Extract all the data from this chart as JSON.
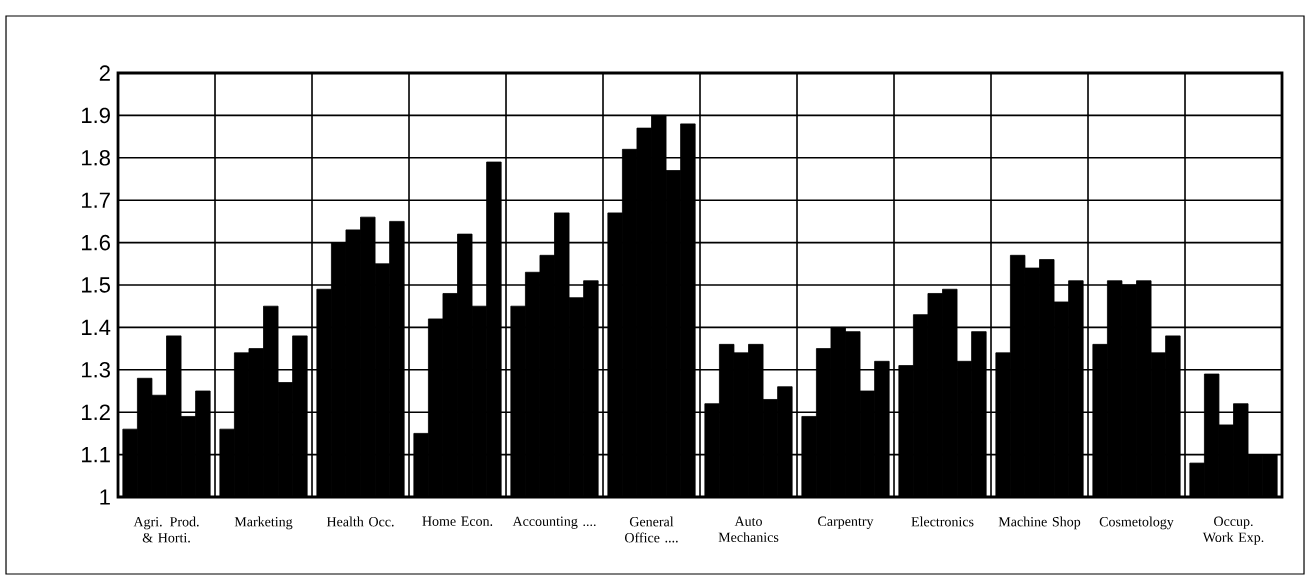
{
  "chart_data": {
    "type": "bar",
    "categories": [
      "Agri. Prod. & Horti.",
      "Marketing",
      "Health Occ.",
      "Home Econ.",
      "Accounting ....",
      "General Office ....",
      "Auto Mechanics",
      "Carpentry",
      "Electronics",
      "Machine Shop",
      "Cosmetology",
      "Occup. Work Exp."
    ],
    "series": [
      {
        "color": "#000000",
        "values": [
          1.16,
          1.16,
          1.49,
          1.15,
          1.45,
          1.67,
          1.22,
          1.19,
          1.31,
          1.34,
          1.36,
          1.08
        ]
      },
      {
        "color": "#000000",
        "values": [
          1.28,
          1.34,
          1.6,
          1.42,
          1.53,
          1.82,
          1.36,
          1.35,
          1.43,
          1.57,
          1.51,
          1.29
        ]
      },
      {
        "color": "#000000",
        "values": [
          1.24,
          1.35,
          1.63,
          1.48,
          1.57,
          1.87,
          1.34,
          1.4,
          1.48,
          1.54,
          1.5,
          1.17
        ]
      },
      {
        "color": "#000000",
        "values": [
          1.38,
          1.45,
          1.66,
          1.62,
          1.67,
          1.9,
          1.36,
          1.39,
          1.49,
          1.56,
          1.51,
          1.22
        ]
      },
      {
        "color": "#000000",
        "values": [
          1.19,
          1.27,
          1.55,
          1.45,
          1.47,
          1.77,
          1.23,
          1.25,
          1.32,
          1.46,
          1.34,
          1.1
        ]
      },
      {
        "color": "#000000",
        "values": [
          1.25,
          1.38,
          1.65,
          1.79,
          1.51,
          1.88,
          1.26,
          1.32,
          1.39,
          1.51,
          1.38,
          1.1
        ]
      }
    ],
    "ylim": [
      1,
      2
    ],
    "yticks": [
      1,
      1.1,
      1.2,
      1.3,
      1.4,
      1.5,
      1.6,
      1.7,
      1.8,
      1.9,
      2
    ],
    "grid": true
  }
}
